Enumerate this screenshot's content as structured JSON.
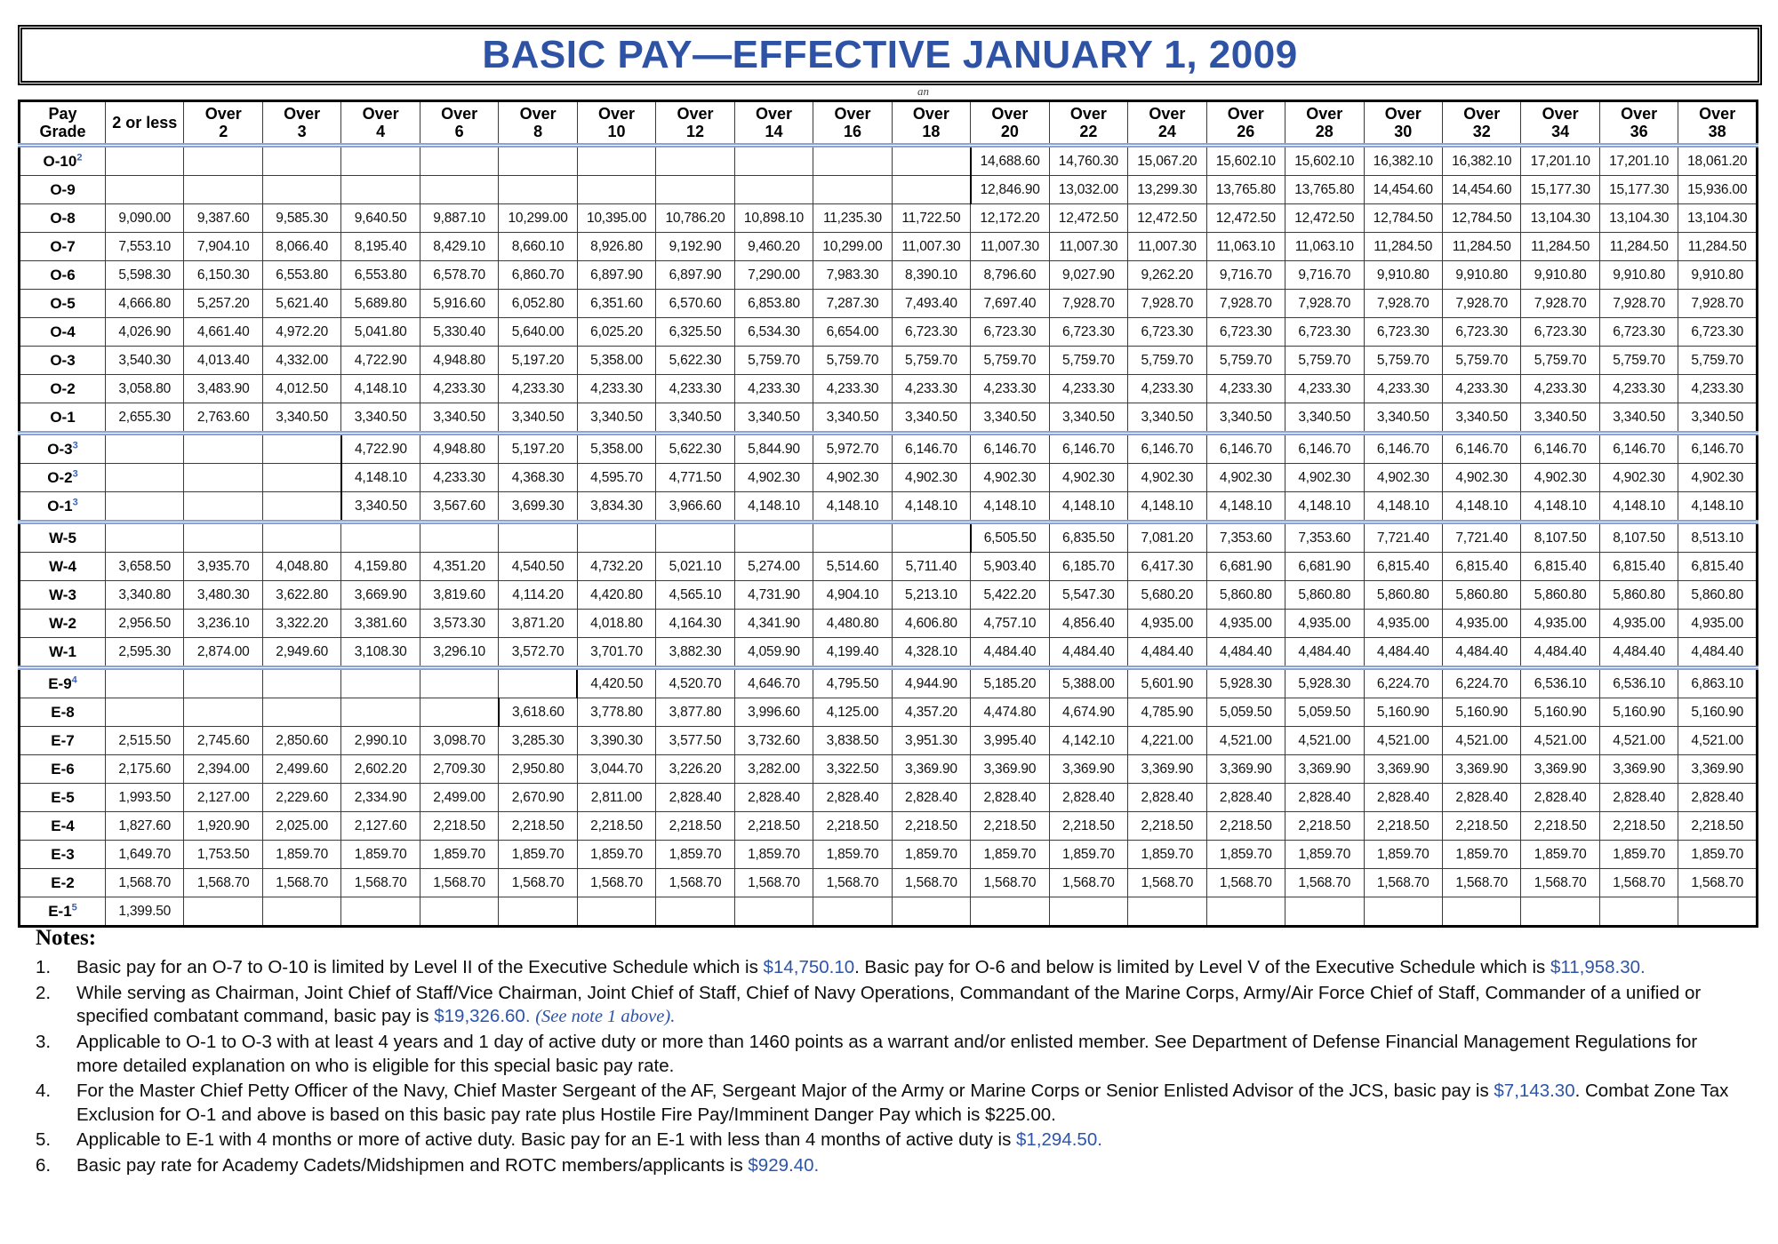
{
  "page": {
    "title": "BASIC PAY—EFFECTIVE JANUARY 1, 2009",
    "stray_text": "an"
  },
  "colors": {
    "title_blue": "#2e53a5",
    "superscript_blue": "#3a62b5",
    "amount_blue": "#2d54a7",
    "separator_blue": "#8ba2d4"
  },
  "table": {
    "columns": [
      {
        "line1": "Pay",
        "line2": "Grade"
      },
      {
        "line1": "2 or less",
        "line2": ""
      },
      {
        "line1": "Over",
        "line2": "2"
      },
      {
        "line1": "Over",
        "line2": "3"
      },
      {
        "line1": "Over",
        "line2": "4"
      },
      {
        "line1": "Over",
        "line2": "6"
      },
      {
        "line1": "Over",
        "line2": "8"
      },
      {
        "line1": "Over",
        "line2": "10"
      },
      {
        "line1": "Over",
        "line2": "12"
      },
      {
        "line1": "Over",
        "line2": "14"
      },
      {
        "line1": "Over",
        "line2": "16"
      },
      {
        "line1": "Over",
        "line2": "18"
      },
      {
        "line1": "Over",
        "line2": "20"
      },
      {
        "line1": "Over",
        "line2": "22"
      },
      {
        "line1": "Over",
        "line2": "24"
      },
      {
        "line1": "Over",
        "line2": "26"
      },
      {
        "line1": "Over",
        "line2": "28"
      },
      {
        "line1": "Over",
        "line2": "30"
      },
      {
        "line1": "Over",
        "line2": "32"
      },
      {
        "line1": "Over",
        "line2": "34"
      },
      {
        "line1": "Over",
        "line2": "36"
      },
      {
        "line1": "Over",
        "line2": "38"
      }
    ],
    "section_start_rows": [
      10,
      13,
      18
    ],
    "rows": [
      {
        "grade": "O-10",
        "sup": "2",
        "values": [
          "",
          "",
          "",
          "",
          "",
          "",
          "",
          "",
          "",
          "",
          "",
          "14,688.60",
          "14,760.30",
          "15,067.20",
          "15,602.10",
          "15,602.10",
          "16,382.10",
          "16,382.10",
          "17,201.10",
          "17,201.10",
          "18,061.20"
        ]
      },
      {
        "grade": "O-9",
        "sup": "",
        "values": [
          "",
          "",
          "",
          "",
          "",
          "",
          "",
          "",
          "",
          "",
          "",
          "12,846.90",
          "13,032.00",
          "13,299.30",
          "13,765.80",
          "13,765.80",
          "14,454.60",
          "14,454.60",
          "15,177.30",
          "15,177.30",
          "15,936.00"
        ]
      },
      {
        "grade": "O-8",
        "sup": "",
        "values": [
          "9,090.00",
          "9,387.60",
          "9,585.30",
          "9,640.50",
          "9,887.10",
          "10,299.00",
          "10,395.00",
          "10,786.20",
          "10,898.10",
          "11,235.30",
          "11,722.50",
          "12,172.20",
          "12,472.50",
          "12,472.50",
          "12,472.50",
          "12,472.50",
          "12,784.50",
          "12,784.50",
          "13,104.30",
          "13,104.30",
          "13,104.30"
        ]
      },
      {
        "grade": "O-7",
        "sup": "",
        "values": [
          "7,553.10",
          "7,904.10",
          "8,066.40",
          "8,195.40",
          "8,429.10",
          "8,660.10",
          "8,926.80",
          "9,192.90",
          "9,460.20",
          "10,299.00",
          "11,007.30",
          "11,007.30",
          "11,007.30",
          "11,007.30",
          "11,063.10",
          "11,063.10",
          "11,284.50",
          "11,284.50",
          "11,284.50",
          "11,284.50",
          "11,284.50"
        ]
      },
      {
        "grade": "O-6",
        "sup": "",
        "values": [
          "5,598.30",
          "6,150.30",
          "6,553.80",
          "6,553.80",
          "6,578.70",
          "6,860.70",
          "6,897.90",
          "6,897.90",
          "7,290.00",
          "7,983.30",
          "8,390.10",
          "8,796.60",
          "9,027.90",
          "9,262.20",
          "9,716.70",
          "9,716.70",
          "9,910.80",
          "9,910.80",
          "9,910.80",
          "9,910.80",
          "9,910.80"
        ]
      },
      {
        "grade": "O-5",
        "sup": "",
        "values": [
          "4,666.80",
          "5,257.20",
          "5,621.40",
          "5,689.80",
          "5,916.60",
          "6,052.80",
          "6,351.60",
          "6,570.60",
          "6,853.80",
          "7,287.30",
          "7,493.40",
          "7,697.40",
          "7,928.70",
          "7,928.70",
          "7,928.70",
          "7,928.70",
          "7,928.70",
          "7,928.70",
          "7,928.70",
          "7,928.70",
          "7,928.70"
        ]
      },
      {
        "grade": "O-4",
        "sup": "",
        "values": [
          "4,026.90",
          "4,661.40",
          "4,972.20",
          "5,041.80",
          "5,330.40",
          "5,640.00",
          "6,025.20",
          "6,325.50",
          "6,534.30",
          "6,654.00",
          "6,723.30",
          "6,723.30",
          "6,723.30",
          "6,723.30",
          "6,723.30",
          "6,723.30",
          "6,723.30",
          "6,723.30",
          "6,723.30",
          "6,723.30",
          "6,723.30"
        ]
      },
      {
        "grade": "O-3",
        "sup": "",
        "values": [
          "3,540.30",
          "4,013.40",
          "4,332.00",
          "4,722.90",
          "4,948.80",
          "5,197.20",
          "5,358.00",
          "5,622.30",
          "5,759.70",
          "5,759.70",
          "5,759.70",
          "5,759.70",
          "5,759.70",
          "5,759.70",
          "5,759.70",
          "5,759.70",
          "5,759.70",
          "5,759.70",
          "5,759.70",
          "5,759.70",
          "5,759.70"
        ]
      },
      {
        "grade": "O-2",
        "sup": "",
        "values": [
          "3,058.80",
          "3,483.90",
          "4,012.50",
          "4,148.10",
          "4,233.30",
          "4,233.30",
          "4,233.30",
          "4,233.30",
          "4,233.30",
          "4,233.30",
          "4,233.30",
          "4,233.30",
          "4,233.30",
          "4,233.30",
          "4,233.30",
          "4,233.30",
          "4,233.30",
          "4,233.30",
          "4,233.30",
          "4,233.30",
          "4,233.30"
        ]
      },
      {
        "grade": "O-1",
        "sup": "",
        "values": [
          "2,655.30",
          "2,763.60",
          "3,340.50",
          "3,340.50",
          "3,340.50",
          "3,340.50",
          "3,340.50",
          "3,340.50",
          "3,340.50",
          "3,340.50",
          "3,340.50",
          "3,340.50",
          "3,340.50",
          "3,340.50",
          "3,340.50",
          "3,340.50",
          "3,340.50",
          "3,340.50",
          "3,340.50",
          "3,340.50",
          "3,340.50"
        ]
      },
      {
        "grade": "O-3",
        "sup": "3",
        "values": [
          "",
          "",
          "",
          "4,722.90",
          "4,948.80",
          "5,197.20",
          "5,358.00",
          "5,622.30",
          "5,844.90",
          "5,972.70",
          "6,146.70",
          "6,146.70",
          "6,146.70",
          "6,146.70",
          "6,146.70",
          "6,146.70",
          "6,146.70",
          "6,146.70",
          "6,146.70",
          "6,146.70",
          "6,146.70"
        ]
      },
      {
        "grade": "O-2",
        "sup": "3",
        "values": [
          "",
          "",
          "",
          "4,148.10",
          "4,233.30",
          "4,368.30",
          "4,595.70",
          "4,771.50",
          "4,902.30",
          "4,902.30",
          "4,902.30",
          "4,902.30",
          "4,902.30",
          "4,902.30",
          "4,902.30",
          "4,902.30",
          "4,902.30",
          "4,902.30",
          "4,902.30",
          "4,902.30",
          "4,902.30"
        ]
      },
      {
        "grade": "O-1",
        "sup": "3",
        "values": [
          "",
          "",
          "",
          "3,340.50",
          "3,567.60",
          "3,699.30",
          "3,834.30",
          "3,966.60",
          "4,148.10",
          "4,148.10",
          "4,148.10",
          "4,148.10",
          "4,148.10",
          "4,148.10",
          "4,148.10",
          "4,148.10",
          "4,148.10",
          "4,148.10",
          "4,148.10",
          "4,148.10",
          "4,148.10"
        ]
      },
      {
        "grade": "W-5",
        "sup": "",
        "values": [
          "",
          "",
          "",
          "",
          "",
          "",
          "",
          "",
          "",
          "",
          "",
          "6,505.50",
          "6,835.50",
          "7,081.20",
          "7,353.60",
          "7,353.60",
          "7,721.40",
          "7,721.40",
          "8,107.50",
          "8,107.50",
          "8,513.10"
        ]
      },
      {
        "grade": "W-4",
        "sup": "",
        "values": [
          "3,658.50",
          "3,935.70",
          "4,048.80",
          "4,159.80",
          "4,351.20",
          "4,540.50",
          "4,732.20",
          "5,021.10",
          "5,274.00",
          "5,514.60",
          "5,711.40",
          "5,903.40",
          "6,185.70",
          "6,417.30",
          "6,681.90",
          "6,681.90",
          "6,815.40",
          "6,815.40",
          "6,815.40",
          "6,815.40",
          "6,815.40"
        ]
      },
      {
        "grade": "W-3",
        "sup": "",
        "values": [
          "3,340.80",
          "3,480.30",
          "3,622.80",
          "3,669.90",
          "3,819.60",
          "4,114.20",
          "4,420.80",
          "4,565.10",
          "4,731.90",
          "4,904.10",
          "5,213.10",
          "5,422.20",
          "5,547.30",
          "5,680.20",
          "5,860.80",
          "5,860.80",
          "5,860.80",
          "5,860.80",
          "5,860.80",
          "5,860.80",
          "5,860.80"
        ]
      },
      {
        "grade": "W-2",
        "sup": "",
        "values": [
          "2,956.50",
          "3,236.10",
          "3,322.20",
          "3,381.60",
          "3,573.30",
          "3,871.20",
          "4,018.80",
          "4,164.30",
          "4,341.90",
          "4,480.80",
          "4,606.80",
          "4,757.10",
          "4,856.40",
          "4,935.00",
          "4,935.00",
          "4,935.00",
          "4,935.00",
          "4,935.00",
          "4,935.00",
          "4,935.00",
          "4,935.00"
        ]
      },
      {
        "grade": "W-1",
        "sup": "",
        "values": [
          "2,595.30",
          "2,874.00",
          "2,949.60",
          "3,108.30",
          "3,296.10",
          "3,572.70",
          "3,701.70",
          "3,882.30",
          "4,059.90",
          "4,199.40",
          "4,328.10",
          "4,484.40",
          "4,484.40",
          "4,484.40",
          "4,484.40",
          "4,484.40",
          "4,484.40",
          "4,484.40",
          "4,484.40",
          "4,484.40",
          "4,484.40"
        ]
      },
      {
        "grade": "E-9",
        "sup": "4",
        "values": [
          "",
          "",
          "",
          "",
          "",
          "",
          "4,420.50",
          "4,520.70",
          "4,646.70",
          "4,795.50",
          "4,944.90",
          "5,185.20",
          "5,388.00",
          "5,601.90",
          "5,928.30",
          "5,928.30",
          "6,224.70",
          "6,224.70",
          "6,536.10",
          "6,536.10",
          "6,863.10"
        ]
      },
      {
        "grade": "E-8",
        "sup": "",
        "values": [
          "",
          "",
          "",
          "",
          "",
          "3,618.60",
          "3,778.80",
          "3,877.80",
          "3,996.60",
          "4,125.00",
          "4,357.20",
          "4,474.80",
          "4,674.90",
          "4,785.90",
          "5,059.50",
          "5,059.50",
          "5,160.90",
          "5,160.90",
          "5,160.90",
          "5,160.90",
          "5,160.90"
        ]
      },
      {
        "grade": "E-7",
        "sup": "",
        "values": [
          "2,515.50",
          "2,745.60",
          "2,850.60",
          "2,990.10",
          "3,098.70",
          "3,285.30",
          "3,390.30",
          "3,577.50",
          "3,732.60",
          "3,838.50",
          "3,951.30",
          "3,995.40",
          "4,142.10",
          "4,221.00",
          "4,521.00",
          "4,521.00",
          "4,521.00",
          "4,521.00",
          "4,521.00",
          "4,521.00",
          "4,521.00"
        ]
      },
      {
        "grade": "E-6",
        "sup": "",
        "values": [
          "2,175.60",
          "2,394.00",
          "2,499.60",
          "2,602.20",
          "2,709.30",
          "2,950.80",
          "3,044.70",
          "3,226.20",
          "3,282.00",
          "3,322.50",
          "3,369.90",
          "3,369.90",
          "3,369.90",
          "3,369.90",
          "3,369.90",
          "3,369.90",
          "3,369.90",
          "3,369.90",
          "3,369.90",
          "3,369.90",
          "3,369.90"
        ]
      },
      {
        "grade": "E-5",
        "sup": "",
        "values": [
          "1,993.50",
          "2,127.00",
          "2,229.60",
          "2,334.90",
          "2,499.00",
          "2,670.90",
          "2,811.00",
          "2,828.40",
          "2,828.40",
          "2,828.40",
          "2,828.40",
          "2,828.40",
          "2,828.40",
          "2,828.40",
          "2,828.40",
          "2,828.40",
          "2,828.40",
          "2,828.40",
          "2,828.40",
          "2,828.40",
          "2,828.40"
        ]
      },
      {
        "grade": "E-4",
        "sup": "",
        "values": [
          "1,827.60",
          "1,920.90",
          "2,025.00",
          "2,127.60",
          "2,218.50",
          "2,218.50",
          "2,218.50",
          "2,218.50",
          "2,218.50",
          "2,218.50",
          "2,218.50",
          "2,218.50",
          "2,218.50",
          "2,218.50",
          "2,218.50",
          "2,218.50",
          "2,218.50",
          "2,218.50",
          "2,218.50",
          "2,218.50",
          "2,218.50"
        ]
      },
      {
        "grade": "E-3",
        "sup": "",
        "values": [
          "1,649.70",
          "1,753.50",
          "1,859.70",
          "1,859.70",
          "1,859.70",
          "1,859.70",
          "1,859.70",
          "1,859.70",
          "1,859.70",
          "1,859.70",
          "1,859.70",
          "1,859.70",
          "1,859.70",
          "1,859.70",
          "1,859.70",
          "1,859.70",
          "1,859.70",
          "1,859.70",
          "1,859.70",
          "1,859.70",
          "1,859.70"
        ]
      },
      {
        "grade": "E-2",
        "sup": "",
        "values": [
          "1,568.70",
          "1,568.70",
          "1,568.70",
          "1,568.70",
          "1,568.70",
          "1,568.70",
          "1,568.70",
          "1,568.70",
          "1,568.70",
          "1,568.70",
          "1,568.70",
          "1,568.70",
          "1,568.70",
          "1,568.70",
          "1,568.70",
          "1,568.70",
          "1,568.70",
          "1,568.70",
          "1,568.70",
          "1,568.70",
          "1,568.70"
        ]
      },
      {
        "grade": "E-1",
        "sup": "5",
        "values": [
          "1,399.50",
          "",
          "",
          "",
          "",
          "",
          "",
          "",
          "",
          "",
          "",
          "",
          "",
          "",
          "",
          "",
          "",
          "",
          "",
          "",
          ""
        ]
      }
    ]
  },
  "notes": {
    "heading": "Notes:",
    "items": [
      {
        "num": "1.",
        "segments": [
          [
            "Basic pay for an O-7 to O-10 is limited by Level II of the Executive Schedule which is ",
            "n"
          ],
          [
            "$14,750.10",
            "b"
          ],
          [
            ".  Basic pay for O-6 and below is limited by Level V of the Executive Schedule which is ",
            "n"
          ],
          [
            "$11,958.30.",
            "b"
          ]
        ]
      },
      {
        "num": "2.",
        "segments": [
          [
            "While serving as Chairman, Joint Chief of Staff/Vice Chairman, Joint Chief of Staff, Chief of Navy Operations, Commandant of the Marine Corps, Army/Air Force Chief of Staff, Commander of a unified or specified combatant command, basic pay is ",
            "n"
          ],
          [
            "$19,326.60.",
            "b"
          ],
          [
            "  ",
            "n"
          ],
          [
            "(See note 1 above).",
            "i"
          ]
        ]
      },
      {
        "num": "3.",
        "segments": [
          [
            "Applicable to O-1 to O-3 with at least 4 years and 1 day of active duty or more than 1460 points as a warrant and/or enlisted member. See Department of Defense Financial Management Regulations for more detailed explanation on who is eligible for this special basic pay rate.",
            "n"
          ]
        ]
      },
      {
        "num": "4.",
        "segments": [
          [
            "For the Master Chief Petty Officer of the Navy, Chief Master Sergeant of the AF, Sergeant Major of the Army or Marine Corps or Senior Enlisted Advisor of the JCS, basic pay is ",
            "n"
          ],
          [
            "$7,143.30",
            "b"
          ],
          [
            ".  Combat Zone Tax Exclusion for O-1 and above is based on this basic pay rate plus Hostile Fire Pay/Imminent Danger Pay which is $225.00.",
            "n"
          ]
        ]
      },
      {
        "num": "5.",
        "segments": [
          [
            "Applicable to E-1 with 4 months or more of active duty.  Basic pay for an E-1 with less than 4 months of active duty is ",
            "n"
          ],
          [
            "$1,294.50.",
            "b"
          ]
        ]
      },
      {
        "num": "6.",
        "segments": [
          [
            "Basic pay rate for Academy Cadets/Midshipmen and ROTC members/applicants is ",
            "n"
          ],
          [
            "$929.40.",
            "b"
          ]
        ]
      }
    ]
  }
}
